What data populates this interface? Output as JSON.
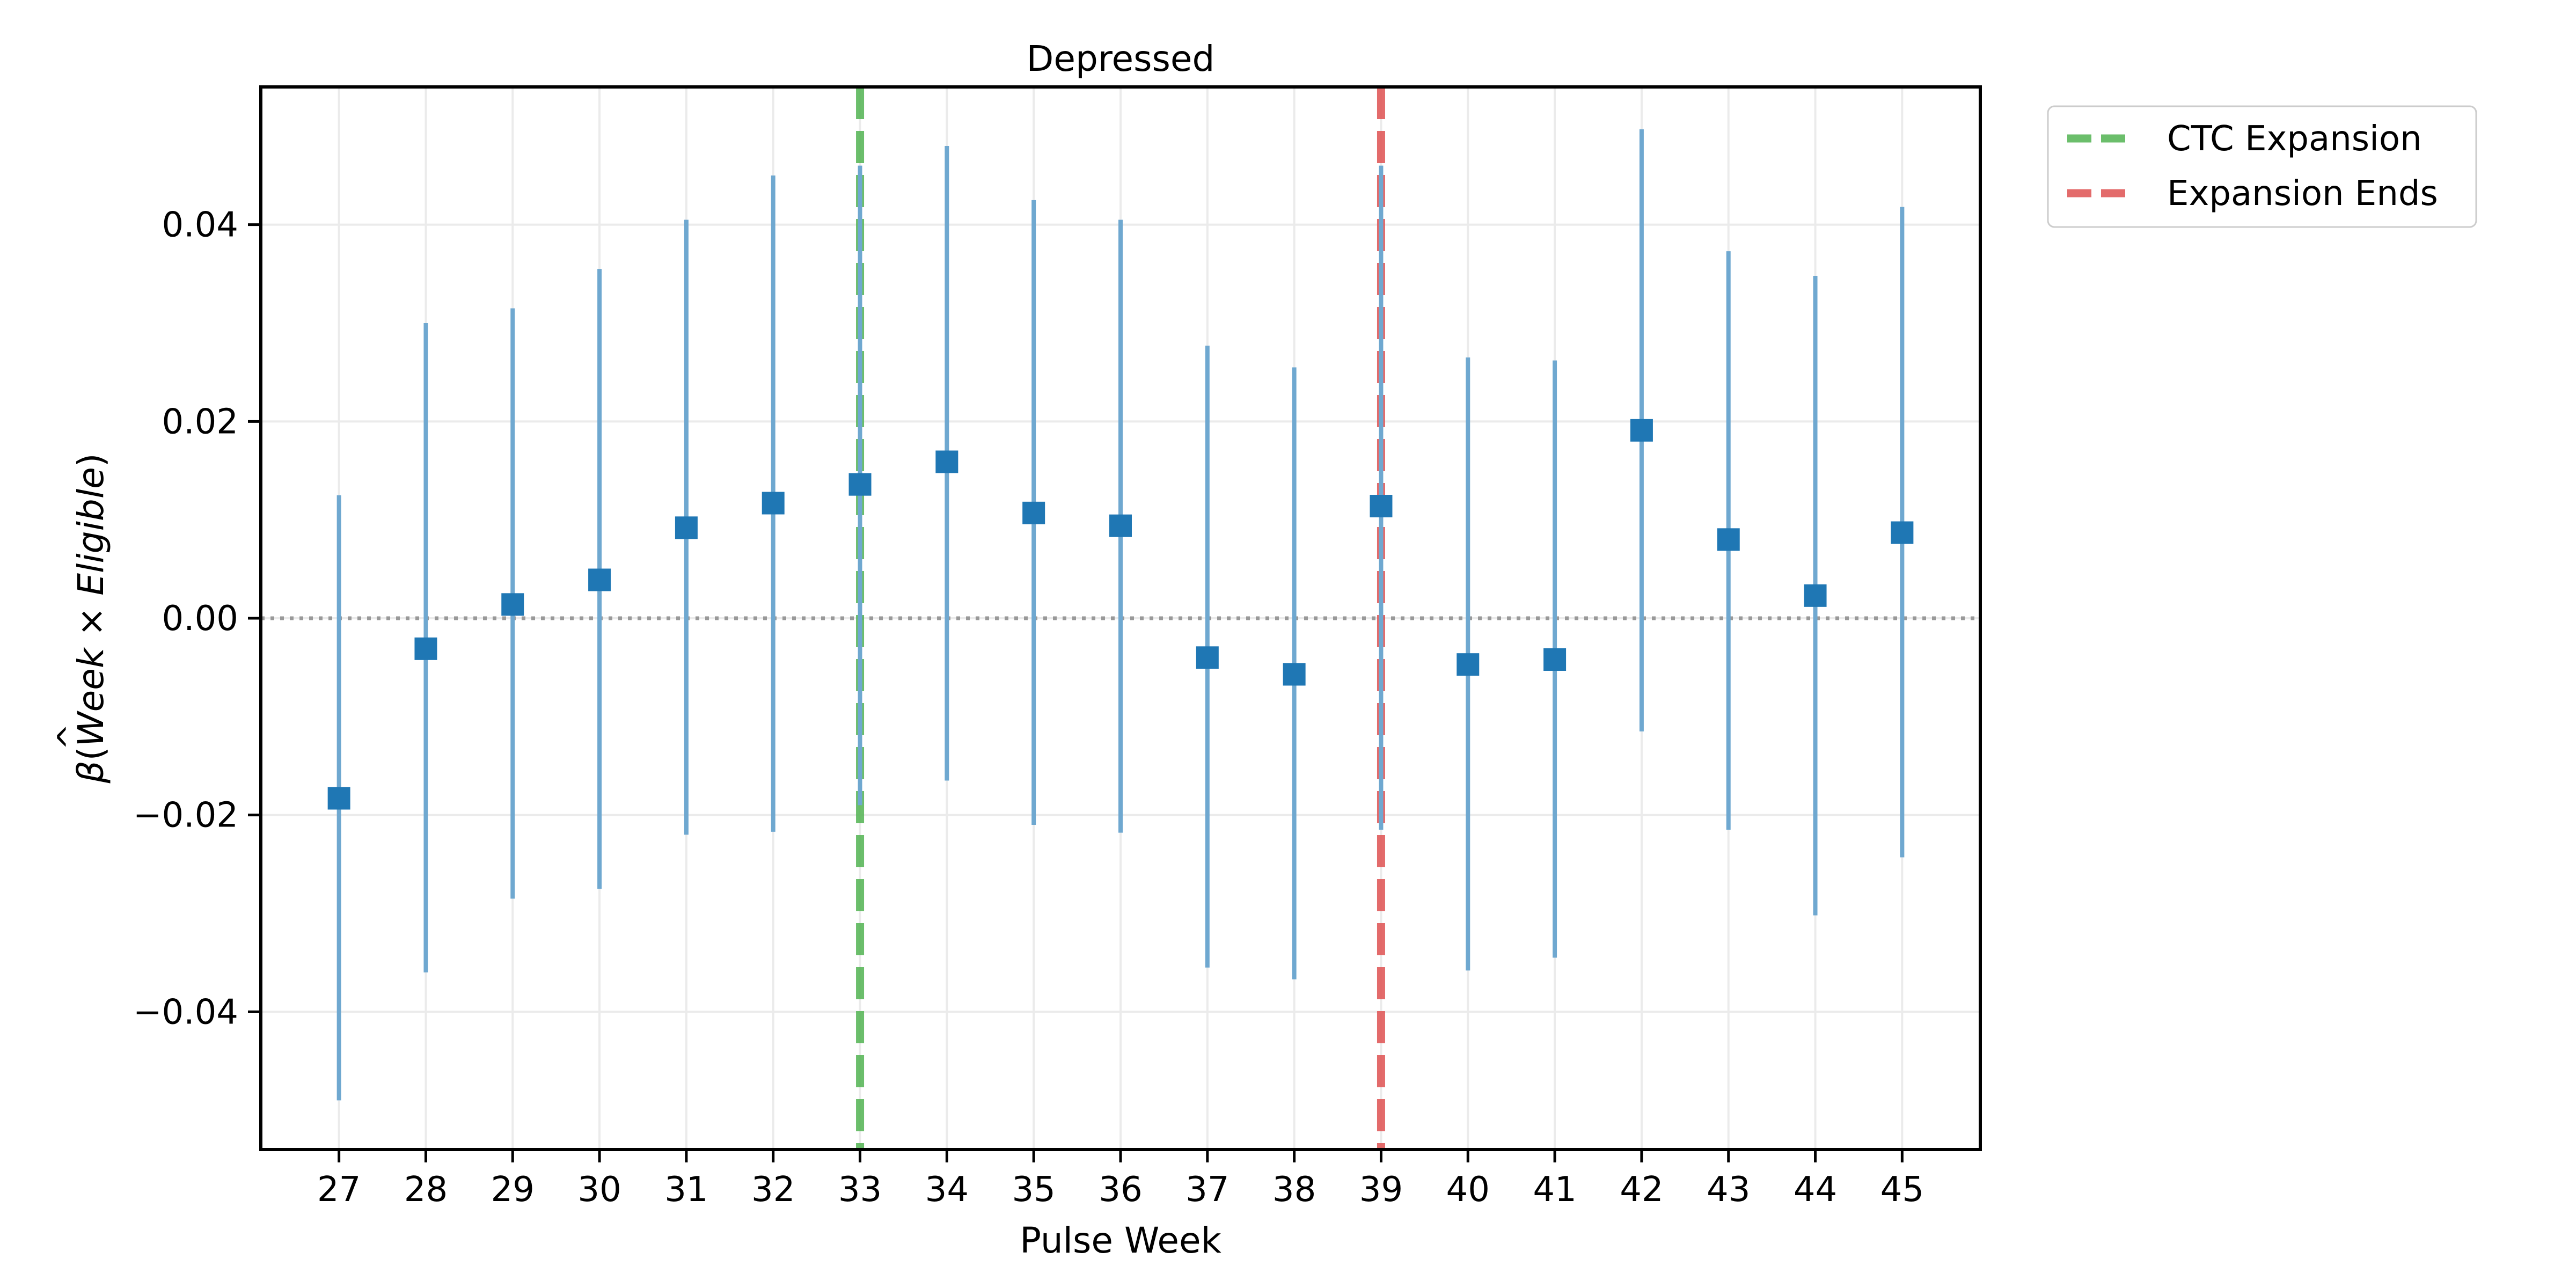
{
  "chart_data": {
    "type": "scatter",
    "title": "Depressed",
    "xlabel": "Pulse Week",
    "ylabel": {
      "hat": "^",
      "beta": "β",
      "open": "(",
      "week": "Week",
      "times": " × ",
      "eligible": "Eligible",
      "close": ")"
    },
    "x": [
      27,
      28,
      29,
      30,
      31,
      32,
      33,
      34,
      35,
      36,
      37,
      38,
      39,
      40,
      41,
      42,
      43,
      44,
      45
    ],
    "series": [
      {
        "estimate": [
          -0.0183,
          -0.0031,
          0.0014,
          0.0039,
          0.0092,
          0.0117,
          0.0136,
          0.0159,
          0.0107,
          0.0094,
          -0.004,
          -0.0057,
          0.0114,
          -0.0047,
          -0.0042,
          0.0191,
          0.008,
          0.0023,
          0.0087
        ],
        "ci_low": [
          -0.049,
          -0.036,
          -0.0285,
          -0.0275,
          -0.022,
          -0.0217,
          -0.019,
          -0.0165,
          -0.021,
          -0.0218,
          -0.0355,
          -0.0367,
          -0.0215,
          -0.0358,
          -0.0345,
          -0.0115,
          -0.0215,
          -0.0302,
          -0.0243
        ],
        "ci_high": [
          0.0125,
          0.03,
          0.0315,
          0.0355,
          0.0405,
          0.045,
          0.046,
          0.048,
          0.0425,
          0.0405,
          0.0277,
          0.0255,
          0.046,
          0.0265,
          0.0262,
          0.0497,
          0.0373,
          0.0348,
          0.0418
        ]
      }
    ],
    "vlines": [
      {
        "label": "CTC Expansion",
        "x": 33,
        "color": "#5cb85c"
      },
      {
        "label": "Expansion Ends",
        "x": 39,
        "color": "#e05c5c"
      }
    ],
    "hline": {
      "y": 0
    },
    "xlim": [
      26.1,
      45.9
    ],
    "ylim": [
      -0.054,
      0.054
    ],
    "yticks": [
      -0.04,
      -0.02,
      0.0,
      0.02,
      0.04
    ],
    "ytick_labels": [
      "−0.04",
      "−0.02",
      "0.00",
      "0.02",
      "0.04"
    ],
    "grid": true,
    "legend_position": "outside-top-right",
    "colors": {
      "marker": "#1f77b4",
      "errorbar": "#6fa8d0",
      "zero_line": "#999999",
      "grid": "#ebebeb"
    }
  }
}
